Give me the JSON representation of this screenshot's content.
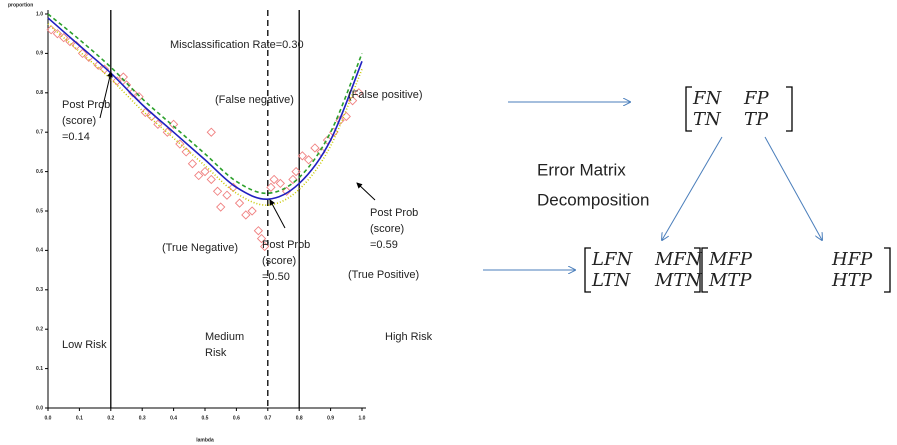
{
  "chart_data": {
    "type": "line",
    "y_label": "proportion",
    "x_label": "lambda",
    "xlim": [
      0,
      1
    ],
    "ylim": [
      0,
      1
    ],
    "xticks": [
      {
        "value": 0,
        "label": "0.0"
      },
      0.1,
      0.2,
      0.3,
      0.4,
      0.5,
      0.6,
      0.7,
      0.8,
      0.9,
      {
        "value": 1,
        "label": "1.0"
      }
    ],
    "yticks": [
      {
        "value": 0,
        "label": "0.0"
      },
      0.1,
      0.2,
      0.3,
      0.4,
      0.5,
      0.6,
      0.7,
      0.8,
      0.9,
      {
        "value": 1,
        "label": "1.0"
      }
    ],
    "x": [
      0,
      0.1,
      0.2,
      0.3,
      0.4,
      0.5,
      0.6,
      0.7,
      0.8,
      0.9,
      1.0
    ],
    "series": [
      {
        "color": "#2ca02c",
        "dash": "4,3",
        "values": [
          1.0,
          0.935,
          0.865,
          0.785,
          0.715,
          0.645,
          0.575,
          0.545,
          0.585,
          0.7,
          0.9
        ]
      },
      {
        "color": "#c8c800",
        "dash": "1,2",
        "values": [
          0.975,
          0.905,
          0.835,
          0.755,
          0.685,
          0.615,
          0.545,
          0.515,
          0.555,
          0.665,
          0.86
        ]
      },
      {
        "color": "#2020c0",
        "dash": "none",
        "values": [
          0.99,
          0.92,
          0.85,
          0.77,
          0.7,
          0.63,
          0.56,
          0.53,
          0.57,
          0.68,
          0.88
        ]
      }
    ],
    "scatter": {
      "color": "#f08080",
      "x": [
        0.01,
        0.03,
        0.05,
        0.07,
        0.09,
        0.11,
        0.13,
        0.16,
        0.18,
        0.22,
        0.24,
        0.25,
        0.27,
        0.29,
        0.31,
        0.33,
        0.35,
        0.38,
        0.4,
        0.42,
        0.44,
        0.46,
        0.48,
        0.5,
        0.52,
        0.52,
        0.54,
        0.55,
        0.57,
        0.59,
        0.61,
        0.63,
        0.65,
        0.67,
        0.68,
        0.69,
        0.71,
        0.72,
        0.74,
        0.76,
        0.78,
        0.79,
        0.81,
        0.83,
        0.85,
        0.87,
        0.89,
        0.91,
        0.93,
        0.95,
        0.97,
        0.99
      ],
      "y": [
        0.96,
        0.95,
        0.94,
        0.93,
        0.92,
        0.9,
        0.89,
        0.87,
        0.86,
        0.83,
        0.84,
        0.82,
        0.8,
        0.79,
        0.75,
        0.74,
        0.72,
        0.7,
        0.72,
        0.67,
        0.65,
        0.62,
        0.59,
        0.6,
        0.7,
        0.58,
        0.55,
        0.51,
        0.54,
        0.56,
        0.52,
        0.49,
        0.5,
        0.45,
        0.43,
        0.41,
        0.56,
        0.58,
        0.57,
        0.55,
        0.58,
        0.6,
        0.64,
        0.63,
        0.66,
        0.65,
        0.68,
        0.7,
        0.73,
        0.74,
        0.78,
        0.8
      ]
    },
    "vlines": [
      {
        "x": 0.2,
        "dash": false
      },
      {
        "x": 0.7,
        "dash": true
      },
      {
        "x": 0.8,
        "dash": false
      }
    ],
    "annotations": [
      [
        "Misclassification Rate=0.30"
      ],
      [
        "Post Prob",
        "(score)",
        "=0.14"
      ],
      [
        "(False negative)"
      ],
      [
        "(False positive)"
      ],
      [
        "(True  Negative)"
      ],
      [
        "Post Prob",
        "(score)",
        "=0.50"
      ],
      [
        "Post Prob",
        "(score)",
        "=0.59"
      ],
      [
        "(True Positive)"
      ],
      [
        "Low Risk"
      ],
      [
        "Medium",
        "Risk"
      ],
      [
        "High Risk"
      ]
    ]
  },
  "diagram": {
    "error_matrix": [
      [
        "FN",
        "FP"
      ],
      [
        "TN",
        "TP"
      ]
    ],
    "label": [
      "Error Matrix",
      "Decomposition"
    ],
    "decomposed": [
      [
        [
          "LFN",
          "MFN"
        ],
        [
          "LTN",
          "MTN"
        ]
      ],
      [
        [
          "MFP",
          "HFP"
        ],
        [
          "MTP",
          "HTP"
        ]
      ]
    ]
  }
}
